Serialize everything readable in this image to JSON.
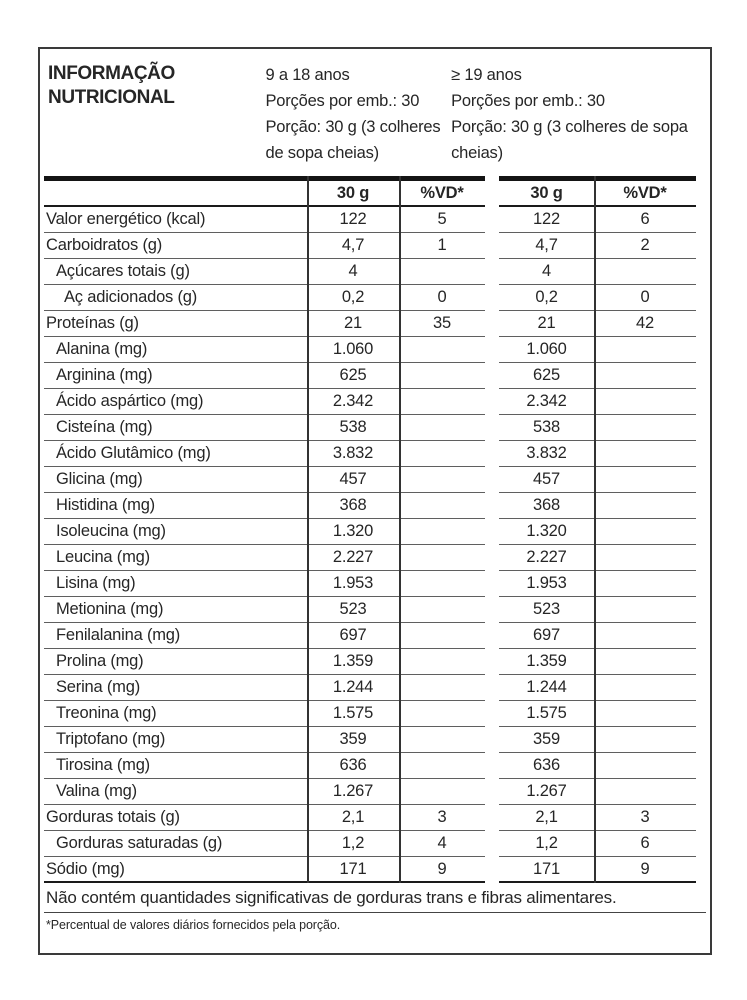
{
  "table": {
    "title": [
      "INFORMAÇÃO",
      "NUTRICIONAL"
    ],
    "groups": [
      {
        "age": "9 a 18 anos",
        "servings": "Porções por emb.: 30",
        "portion": "Porção: 30 g (3 colheres de sopa cheias)",
        "amount_header": "30 g",
        "vd_header": "%VD*"
      },
      {
        "age": "≥ 19 anos",
        "servings": "Porções por emb.: 30",
        "portion": "Porção: 30 g (3 colheres de sopa cheias)",
        "amount_header": "30 g",
        "vd_header": "%VD*"
      }
    ],
    "rows": [
      {
        "label": "Valor energético (kcal)",
        "indent": 0,
        "v1": "122",
        "d1": "5",
        "v2": "122",
        "d2": "6"
      },
      {
        "label": "Carboidratos (g)",
        "indent": 0,
        "v1": "4,7",
        "d1": "1",
        "v2": "4,7",
        "d2": "2"
      },
      {
        "label": "Açúcares totais (g)",
        "indent": 1,
        "v1": "4",
        "d1": "",
        "v2": "4",
        "d2": ""
      },
      {
        "label": "Aç adicionados (g)",
        "indent": 2,
        "v1": "0,2",
        "d1": "0",
        "v2": "0,2",
        "d2": "0"
      },
      {
        "label": "Proteínas (g)",
        "indent": 0,
        "v1": "21",
        "d1": "35",
        "v2": "21",
        "d2": "42"
      },
      {
        "label": "Alanina (mg)",
        "indent": 1,
        "v1": "1.060",
        "d1": "",
        "v2": "1.060",
        "d2": ""
      },
      {
        "label": "Arginina (mg)",
        "indent": 1,
        "v1": "625",
        "d1": "",
        "v2": "625",
        "d2": ""
      },
      {
        "label": "Ácido aspártico (mg)",
        "indent": 1,
        "v1": "2.342",
        "d1": "",
        "v2": "2.342",
        "d2": ""
      },
      {
        "label": "Cisteína (mg)",
        "indent": 1,
        "v1": "538",
        "d1": "",
        "v2": "538",
        "d2": ""
      },
      {
        "label": "Ácido Glutâmico (mg)",
        "indent": 1,
        "v1": "3.832",
        "d1": "",
        "v2": "3.832",
        "d2": ""
      },
      {
        "label": "Glicina (mg)",
        "indent": 1,
        "v1": "457",
        "d1": "",
        "v2": "457",
        "d2": ""
      },
      {
        "label": "Histidina (mg)",
        "indent": 1,
        "v1": "368",
        "d1": "",
        "v2": "368",
        "d2": ""
      },
      {
        "label": "Isoleucina (mg)",
        "indent": 1,
        "v1": "1.320",
        "d1": "",
        "v2": "1.320",
        "d2": ""
      },
      {
        "label": "Leucina (mg)",
        "indent": 1,
        "v1": "2.227",
        "d1": "",
        "v2": "2.227",
        "d2": ""
      },
      {
        "label": "Lisina (mg)",
        "indent": 1,
        "v1": "1.953",
        "d1": "",
        "v2": "1.953",
        "d2": ""
      },
      {
        "label": "Metionina (mg)",
        "indent": 1,
        "v1": "523",
        "d1": "",
        "v2": "523",
        "d2": ""
      },
      {
        "label": "Fenilalanina (mg)",
        "indent": 1,
        "v1": "697",
        "d1": "",
        "v2": "697",
        "d2": ""
      },
      {
        "label": "Prolina (mg)",
        "indent": 1,
        "v1": "1.359",
        "d1": "",
        "v2": "1.359",
        "d2": ""
      },
      {
        "label": "Serina (mg)",
        "indent": 1,
        "v1": "1.244",
        "d1": "",
        "v2": "1.244",
        "d2": ""
      },
      {
        "label": "Treonina (mg)",
        "indent": 1,
        "v1": "1.575",
        "d1": "",
        "v2": "1.575",
        "d2": ""
      },
      {
        "label": "Triptofano (mg)",
        "indent": 1,
        "v1": "359",
        "d1": "",
        "v2": "359",
        "d2": ""
      },
      {
        "label": "Tirosina (mg)",
        "indent": 1,
        "v1": "636",
        "d1": "",
        "v2": "636",
        "d2": ""
      },
      {
        "label": "Valina (mg)",
        "indent": 1,
        "v1": "1.267",
        "d1": "",
        "v2": "1.267",
        "d2": ""
      },
      {
        "label": "Gorduras totais (g)",
        "indent": 0,
        "v1": "2,1",
        "d1": "3",
        "v2": "2,1",
        "d2": "3"
      },
      {
        "label": "Gorduras saturadas (g)",
        "indent": 1,
        "v1": "1,2",
        "d1": "4",
        "v2": "1,2",
        "d2": "6"
      },
      {
        "label": "Sódio (mg)",
        "indent": 0,
        "v1": "171",
        "d1": "9",
        "v2": "171",
        "d2": "9"
      }
    ],
    "notes": {
      "no_significant": "Não contém quantidades significativas de gorduras trans e fibras alimentares.",
      "daily_values": "*Percentual de valores diários fornecidos pela porção."
    },
    "colors": {
      "text": "#262626",
      "row_line": "#5f5f5f",
      "heavy_line": "#1a1a1a",
      "background": "#ffffff"
    }
  }
}
